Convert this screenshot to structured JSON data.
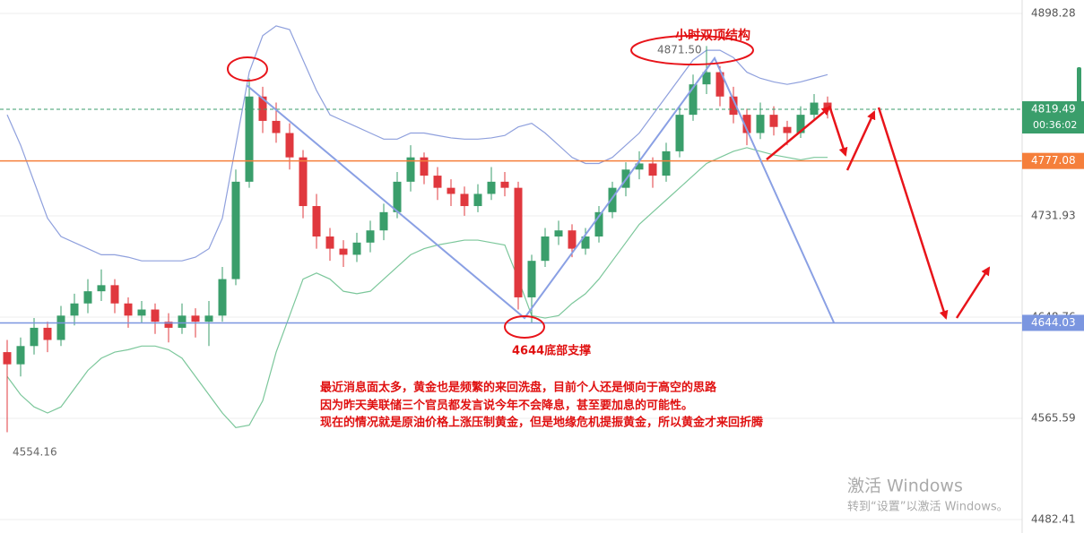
{
  "chart_data": {
    "type": "candlestick",
    "ylim": [
      4471.4,
      4909.3
    ],
    "yticks": [
      4898.28,
      4731.93,
      4648.76,
      4565.59,
      4482.41
    ],
    "grid": true,
    "up_color": "#3a9e6b",
    "down_color": "#e0383e",
    "candles": [
      [
        4620,
        4630,
        4554.16,
        4610
      ],
      [
        4610,
        4632,
        4600,
        4625
      ],
      [
        4625,
        4648,
        4618,
        4640
      ],
      [
        4640,
        4645,
        4620,
        4630
      ],
      [
        4630,
        4658,
        4625,
        4650
      ],
      [
        4650,
        4668,
        4642,
        4660
      ],
      [
        4660,
        4680,
        4652,
        4670
      ],
      [
        4670,
        4688,
        4662,
        4675
      ],
      [
        4675,
        4680,
        4652,
        4660
      ],
      [
        4660,
        4665,
        4640,
        4650
      ],
      [
        4650,
        4662,
        4644,
        4655
      ],
      [
        4655,
        4660,
        4635,
        4645
      ],
      [
        4645,
        4652,
        4628,
        4640
      ],
      [
        4640,
        4660,
        4635,
        4650
      ],
      [
        4650,
        4656,
        4632,
        4645
      ],
      [
        4645,
        4662,
        4625,
        4650
      ],
      [
        4650,
        4690,
        4645,
        4680
      ],
      [
        4680,
        4770,
        4675,
        4760
      ],
      [
        4760,
        4845,
        4755,
        4830
      ],
      [
        4830,
        4838,
        4800,
        4810
      ],
      [
        4810,
        4825,
        4792,
        4800
      ],
      [
        4800,
        4808,
        4770,
        4780
      ],
      [
        4780,
        4786,
        4730,
        4740
      ],
      [
        4740,
        4750,
        4705,
        4715
      ],
      [
        4715,
        4722,
        4695,
        4705
      ],
      [
        4705,
        4712,
        4690,
        4700
      ],
      [
        4700,
        4718,
        4694,
        4710
      ],
      [
        4710,
        4728,
        4702,
        4720
      ],
      [
        4720,
        4742,
        4712,
        4735
      ],
      [
        4735,
        4768,
        4730,
        4760
      ],
      [
        4760,
        4790,
        4752,
        4780
      ],
      [
        4780,
        4784,
        4758,
        4765
      ],
      [
        4765,
        4772,
        4745,
        4755
      ],
      [
        4755,
        4762,
        4740,
        4750
      ],
      [
        4750,
        4756,
        4732,
        4740
      ],
      [
        4740,
        4758,
        4735,
        4750
      ],
      [
        4750,
        4772,
        4745,
        4760
      ],
      [
        4760,
        4768,
        4748,
        4755
      ],
      [
        4755,
        4760,
        4655,
        4665
      ],
      [
        4665,
        4700,
        4644.03,
        4695
      ],
      [
        4695,
        4722,
        4690,
        4715
      ],
      [
        4715,
        4728,
        4708,
        4720
      ],
      [
        4720,
        4725,
        4698,
        4705
      ],
      [
        4705,
        4722,
        4700,
        4715
      ],
      [
        4715,
        4740,
        4710,
        4735
      ],
      [
        4735,
        4760,
        4730,
        4755
      ],
      [
        4755,
        4776,
        4748,
        4770
      ],
      [
        4770,
        4785,
        4762,
        4775
      ],
      [
        4775,
        4780,
        4755,
        4765
      ],
      [
        4765,
        4792,
        4760,
        4785
      ],
      [
        4785,
        4822,
        4780,
        4815
      ],
      [
        4815,
        4848,
        4810,
        4840
      ],
      [
        4840,
        4871.5,
        4832,
        4850
      ],
      [
        4850,
        4855,
        4822,
        4830
      ],
      [
        4830,
        4838,
        4808,
        4815
      ],
      [
        4815,
        4820,
        4790,
        4800
      ],
      [
        4800,
        4825,
        4795,
        4815
      ],
      [
        4815,
        4822,
        4798,
        4805
      ],
      [
        4805,
        4810,
        4790,
        4800
      ],
      [
        4800,
        4822,
        4796,
        4815
      ],
      [
        4815,
        4832,
        4810,
        4825
      ],
      [
        4825,
        4830,
        4812,
        4819.49
      ]
    ],
    "bands": [
      {
        "color": "#8fa0dd",
        "values": [
          4815,
          4790,
          4760,
          4730,
          4715,
          4710,
          4705,
          4700,
          4700,
          4698,
          4695,
          4695,
          4695,
          4695,
          4698,
          4705,
          4730,
          4790,
          4850,
          4880,
          4888,
          4885,
          4860,
          4835,
          4815,
          4810,
          4805,
          4800,
          4795,
          4795,
          4800,
          4800,
          4798,
          4796,
          4795,
          4795,
          4796,
          4798,
          4805,
          4808,
          4800,
          4790,
          4780,
          4775,
          4775,
          4780,
          4790,
          4800,
          4815,
          4830,
          4845,
          4860,
          4868,
          4868,
          4862,
          4850,
          4845,
          4842,
          4840,
          4842,
          4845,
          4848
        ]
      },
      {
        "color": "#7cc79b",
        "values": [
          4600,
          4585,
          4575,
          4570,
          4575,
          4590,
          4605,
          4615,
          4620,
          4622,
          4625,
          4625,
          4622,
          4615,
          4600,
          4585,
          4570,
          4558,
          4560,
          4580,
          4620,
          4650,
          4680,
          4685,
          4680,
          4670,
          4668,
          4670,
          4680,
          4690,
          4700,
          4705,
          4708,
          4710,
          4712,
          4712,
          4710,
          4708,
          4680,
          4650,
          4648,
          4650,
          4660,
          4668,
          4680,
          4695,
          4710,
          4725,
          4735,
          4745,
          4755,
          4765,
          4775,
          4780,
          4785,
          4788,
          4785,
          4782,
          4780,
          4778,
          4780,
          4780
        ]
      }
    ],
    "levels": [
      {
        "value": 4819.49,
        "color": "#3a9e6b",
        "dashed": true
      },
      {
        "value": 4777.08,
        "color": "#f57f3b",
        "dashed": false
      },
      {
        "value": 4644.03,
        "color": "#7b96e0",
        "dashed": false
      }
    ],
    "countdown": "00:36:02",
    "annotations": {
      "high": {
        "value": 4871.5,
        "label": "4871.50"
      },
      "low": 4554.16,
      "top_title": "小时双顶结构",
      "support": "4644底部支撑",
      "notes": [
        "最近消息面太多，黄金也是频繁的来回洗盘，目前个人还是倾向于高空的思路",
        "因为昨天美联储三个官员都发言说今年不会降息，甚至要加息的可能性。",
        "现在的情况就是原油价格上涨压制黄金，但是地缘危机提振黄金，所以黄金才来回折腾"
      ]
    }
  },
  "watermark": {
    "title": "激活 Windows",
    "subtitle": "转到“设置”以激活 Windows。"
  }
}
